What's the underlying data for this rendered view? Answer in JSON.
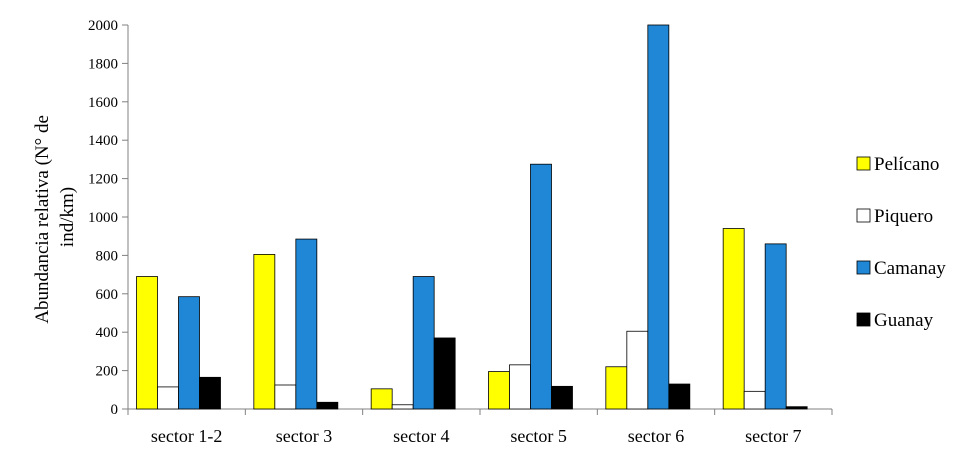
{
  "chart_data": {
    "type": "bar",
    "ylabel": "Abundancia relativa (N° de ind/km)",
    "ylabel_lines": [
      "Abundancia relativa (N° de",
      "ind/km)"
    ],
    "xlabel": "",
    "ylim": [
      0,
      2000
    ],
    "ytick_step": 200,
    "yticks": [
      "0",
      "200",
      "400",
      "600",
      "800",
      "1000",
      "1200",
      "1400",
      "1600",
      "1800",
      "2000"
    ],
    "categories": [
      "sector 1-2",
      "sector 3",
      "sector 4",
      "sector 5",
      "sector 6",
      "sector 7"
    ],
    "series": [
      {
        "name": "Pelícano",
        "color": "#ffff00",
        "values": [
          690,
          805,
          105,
          195,
          220,
          940
        ]
      },
      {
        "name": "Piquero",
        "color": "#ffffff",
        "values": [
          115,
          125,
          22,
          230,
          405,
          92
        ]
      },
      {
        "name": "Camanay",
        "color": "#1f87d6",
        "values": [
          585,
          885,
          690,
          1275,
          2000,
          860
        ]
      },
      {
        "name": "Guanay",
        "color": "#000000",
        "values": [
          165,
          35,
          370,
          118,
          130,
          12
        ]
      }
    ],
    "legend_position": "right",
    "grid": false
  }
}
